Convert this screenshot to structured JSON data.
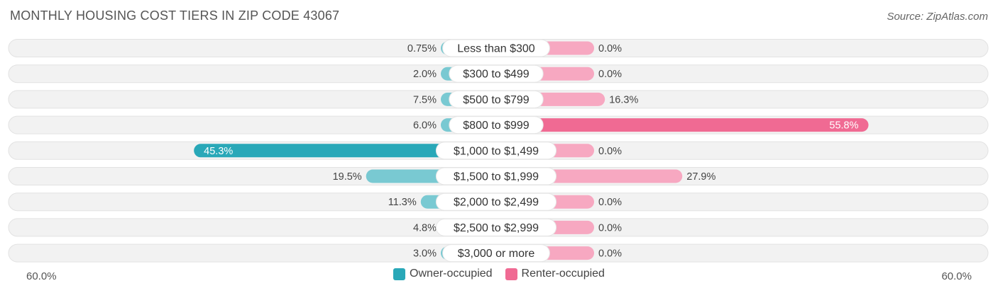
{
  "header": {
    "title": "MONTHLY HOUSING COST TIERS IN ZIP CODE 43067",
    "source": "Source: ZipAtlas.com"
  },
  "colors": {
    "owner_strong": "#29a8b8",
    "owner_light": "#79c9d2",
    "renter_strong": "#f06a93",
    "renter_light": "#f7a8c1",
    "track": "#f1f1f1"
  },
  "chart_data": {
    "type": "bar",
    "orientation": "horizontal-diverging",
    "categories": [
      "Less than $300",
      "$300 to $499",
      "$500 to $799",
      "$800 to $999",
      "$1,000 to $1,499",
      "$1,500 to $1,999",
      "$2,000 to $2,499",
      "$2,500 to $2,999",
      "$3,000 or more"
    ],
    "series": [
      {
        "name": "Owner-occupied",
        "values": [
          0.75,
          2.0,
          7.5,
          6.0,
          45.3,
          19.5,
          11.3,
          4.8,
          3.0
        ],
        "labels": [
          "0.75%",
          "2.0%",
          "7.5%",
          "6.0%",
          "45.3%",
          "19.5%",
          "11.3%",
          "4.8%",
          "3.0%"
        ]
      },
      {
        "name": "Renter-occupied",
        "values": [
          0.0,
          0.0,
          16.3,
          55.8,
          0.0,
          27.9,
          0.0,
          0.0,
          0.0
        ],
        "labels": [
          "0.0%",
          "0.0%",
          "16.3%",
          "55.8%",
          "0.0%",
          "27.9%",
          "0.0%",
          "0.0%",
          "0.0%"
        ]
      }
    ],
    "xlim": [
      -60,
      60
    ],
    "axis_min_label": "60.0%",
    "axis_max_label": "60.0%",
    "legend": "bottom-center"
  }
}
